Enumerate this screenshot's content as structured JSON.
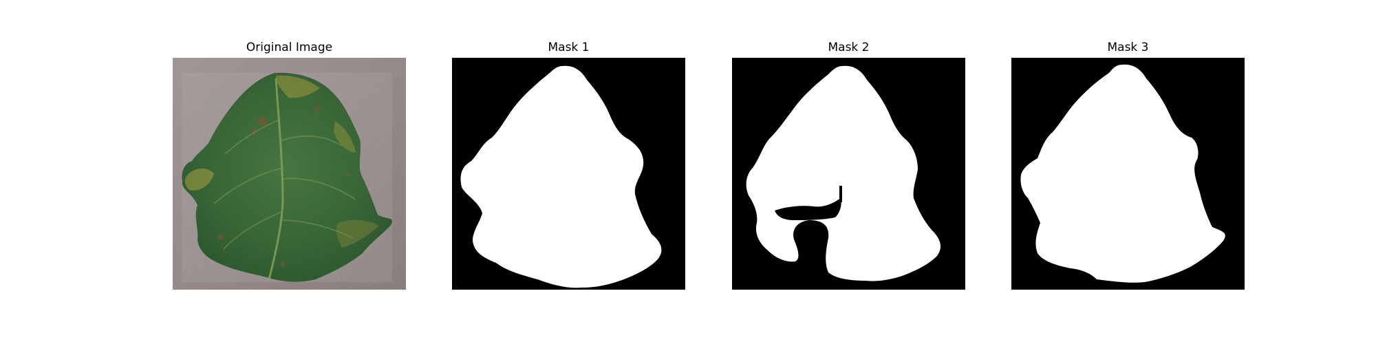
{
  "figure": {
    "panels": [
      {
        "id": "original",
        "title": "Original Image"
      },
      {
        "id": "mask-1",
        "title": "Mask 1"
      },
      {
        "id": "mask-2",
        "title": "Mask 2"
      },
      {
        "id": "mask-3",
        "title": "Mask 3"
      }
    ]
  },
  "colors": {
    "background": "#ffffff",
    "mask_foreground": "#ffffff",
    "mask_background": "#000000",
    "leaf_green": "#3f6b3a",
    "leaf_yellow": "#b7a43c",
    "surface_gray": "#9a8e8d"
  }
}
